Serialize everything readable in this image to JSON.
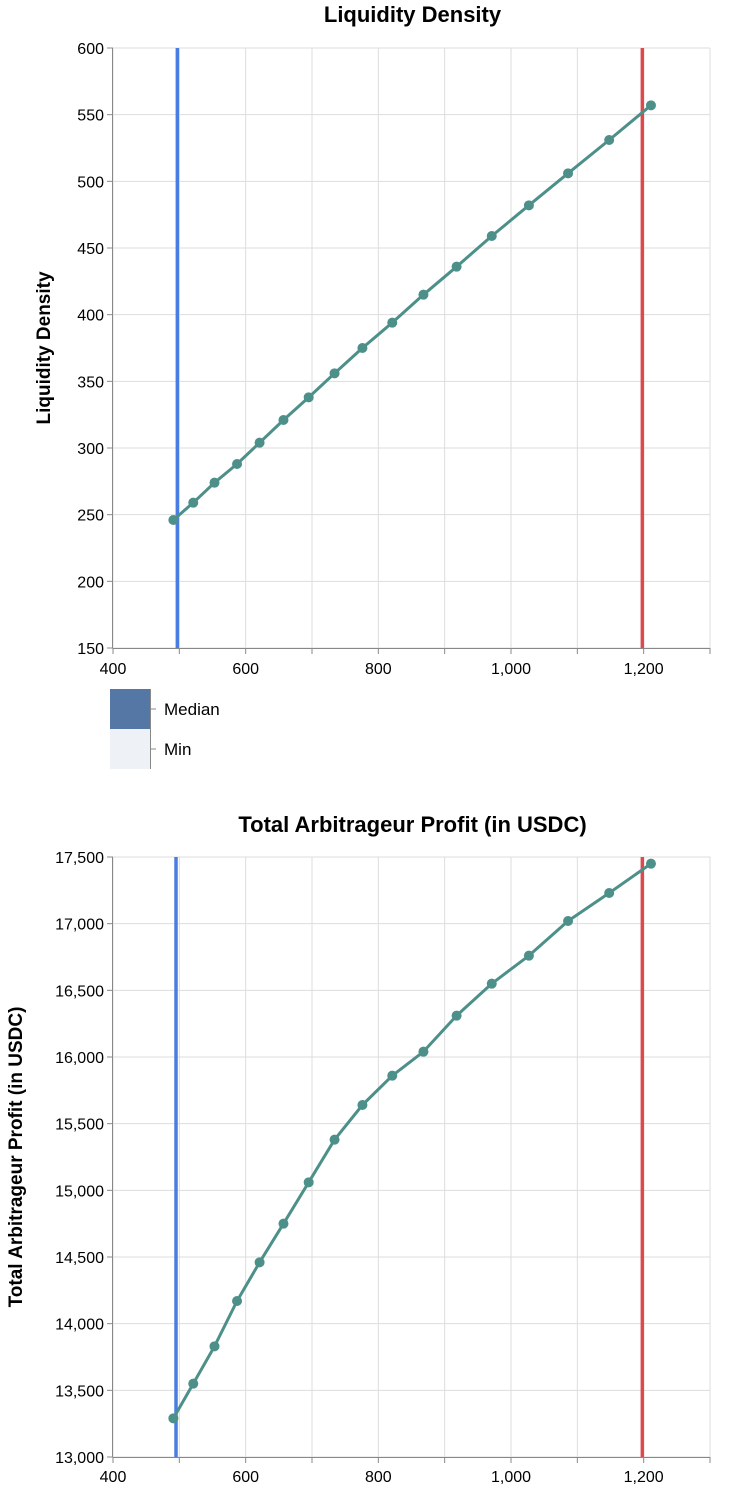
{
  "colors": {
    "series_line": "#4c9089",
    "median_rule": "#4a7de2",
    "max_rule": "#dc4a4c",
    "legend_median": "#5577a5",
    "legend_min": "#eef2f7"
  },
  "chart_data": [
    {
      "type": "line",
      "title": "Liquidity Density",
      "ylabel": "Liquidity Density",
      "xlabel": "",
      "xlim": [
        400,
        1300
      ],
      "ylim": [
        150,
        600
      ],
      "x_ticks": [
        400,
        600,
        800,
        1000,
        1200
      ],
      "x_tick_labels": [
        "400",
        "600",
        "800",
        "1,000",
        "1,200"
      ],
      "y_ticks": [
        150,
        200,
        250,
        300,
        350,
        400,
        450,
        500,
        550,
        600
      ],
      "y_tick_labels": [
        "150",
        "200",
        "250",
        "300",
        "350",
        "400",
        "450",
        "500",
        "550",
        "600"
      ],
      "grid": true,
      "vertical_rules": [
        497,
        1198
      ],
      "series": [
        {
          "x": [
            491,
            521,
            553,
            587,
            621,
            657,
            695,
            734,
            776,
            821,
            868,
            918,
            971,
            1027,
            1086,
            1148,
            1211
          ],
          "values": [
            246,
            259,
            274,
            288,
            304,
            321,
            338,
            356,
            375,
            394,
            415,
            436,
            459,
            482,
            506,
            531,
            557
          ]
        }
      ],
      "legend": {
        "placement": "bottom-left",
        "entries": [
          "Median",
          "Min"
        ]
      }
    },
    {
      "type": "line",
      "title": "Total Arbitrageur Profit (in USDC)",
      "ylabel": "Total Arbitrageur Profit (in USDC)",
      "xlabel": "",
      "xlim": [
        400,
        1300
      ],
      "ylim": [
        13000,
        17500
      ],
      "x_ticks": [
        400,
        600,
        800,
        1000,
        1200
      ],
      "x_tick_labels": [
        "400",
        "600",
        "800",
        "1,000",
        "1,200"
      ],
      "y_ticks": [
        13000,
        13500,
        14000,
        14500,
        15000,
        15500,
        16000,
        16500,
        17000,
        17500
      ],
      "y_tick_labels": [
        "13,000",
        "13,500",
        "14,000",
        "14,500",
        "15,000",
        "15,500",
        "16,000",
        "16,500",
        "17,000",
        "17,500"
      ],
      "grid": true,
      "vertical_rules": [
        495,
        1198
      ],
      "series": [
        {
          "x": [
            491,
            521,
            553,
            587,
            621,
            657,
            695,
            734,
            776,
            821,
            868,
            918,
            971,
            1027,
            1086,
            1148,
            1211
          ],
          "values": [
            13290,
            13550,
            13830,
            14170,
            14460,
            14750,
            15060,
            15380,
            15640,
            15860,
            16040,
            16310,
            16550,
            16760,
            17020,
            17230,
            17450
          ]
        }
      ]
    }
  ]
}
